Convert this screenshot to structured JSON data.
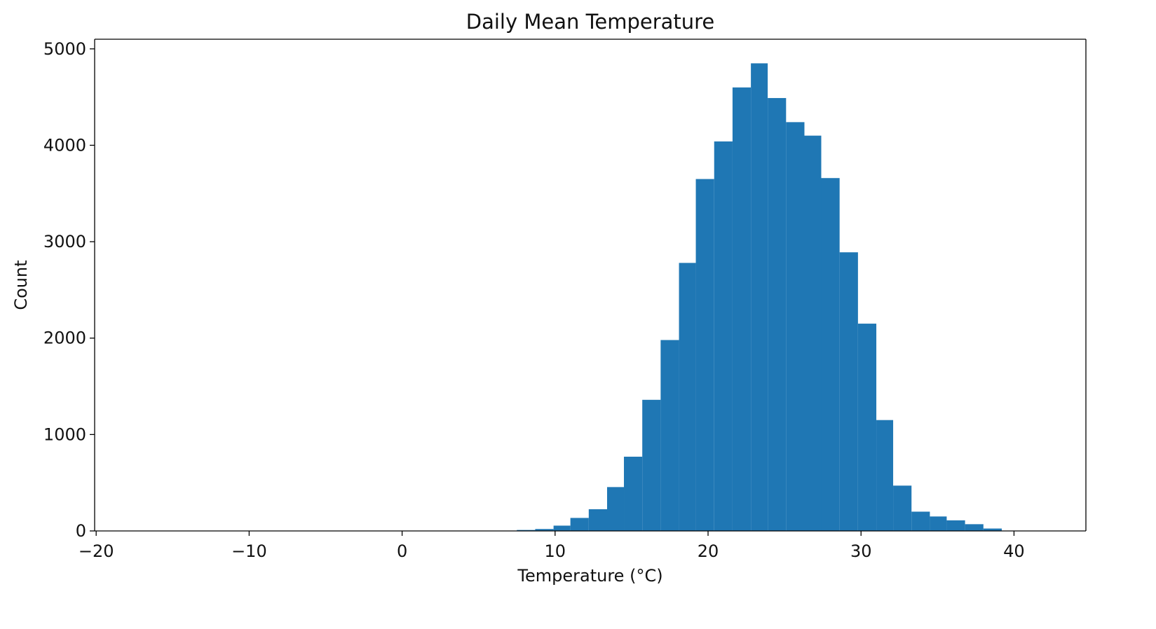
{
  "chart_data": {
    "type": "bar",
    "title": "Daily Mean Temperature",
    "xlabel": "Temperature (°C)",
    "ylabel": "Count",
    "xlim": [
      -20.1,
      44.7
    ],
    "ylim": [
      0,
      5100
    ],
    "x_ticks": [
      -20,
      -10,
      0,
      10,
      20,
      30,
      40
    ],
    "x_tick_labels": [
      "−20",
      "−10",
      "0",
      "10",
      "20",
      "30",
      "40"
    ],
    "y_ticks": [
      0,
      1000,
      2000,
      3000,
      4000,
      5000
    ],
    "y_tick_labels": [
      "0",
      "1000",
      "2000",
      "3000",
      "4000",
      "5000"
    ],
    "grid": false,
    "legend": false,
    "bar_color": "#1f77b4",
    "bins": [
      {
        "start": 7.5,
        "end": 8.7,
        "count": 10
      },
      {
        "start": 8.7,
        "end": 9.9,
        "count": 20
      },
      {
        "start": 9.9,
        "end": 11.0,
        "count": 55
      },
      {
        "start": 11.0,
        "end": 12.2,
        "count": 135
      },
      {
        "start": 12.2,
        "end": 13.4,
        "count": 225
      },
      {
        "start": 13.4,
        "end": 14.5,
        "count": 455
      },
      {
        "start": 14.5,
        "end": 15.7,
        "count": 770
      },
      {
        "start": 15.7,
        "end": 16.9,
        "count": 1360
      },
      {
        "start": 16.9,
        "end": 18.1,
        "count": 1980
      },
      {
        "start": 18.1,
        "end": 19.2,
        "count": 2780
      },
      {
        "start": 19.2,
        "end": 20.4,
        "count": 3650
      },
      {
        "start": 20.4,
        "end": 21.6,
        "count": 4040
      },
      {
        "start": 21.6,
        "end": 22.8,
        "count": 4600
      },
      {
        "start": 22.8,
        "end": 23.9,
        "count": 4850
      },
      {
        "start": 23.9,
        "end": 25.1,
        "count": 4490
      },
      {
        "start": 25.1,
        "end": 26.3,
        "count": 4240
      },
      {
        "start": 26.3,
        "end": 27.4,
        "count": 4100
      },
      {
        "start": 27.4,
        "end": 28.6,
        "count": 3660
      },
      {
        "start": 28.6,
        "end": 29.8,
        "count": 2890
      },
      {
        "start": 29.8,
        "end": 31.0,
        "count": 2150
      },
      {
        "start": 31.0,
        "end": 32.1,
        "count": 1150
      },
      {
        "start": 32.1,
        "end": 33.3,
        "count": 470
      },
      {
        "start": 33.3,
        "end": 34.5,
        "count": 200
      },
      {
        "start": 34.5,
        "end": 35.6,
        "count": 150
      },
      {
        "start": 35.6,
        "end": 36.8,
        "count": 110
      },
      {
        "start": 36.8,
        "end": 38.0,
        "count": 70
      },
      {
        "start": 38.0,
        "end": 39.2,
        "count": 25
      }
    ]
  }
}
